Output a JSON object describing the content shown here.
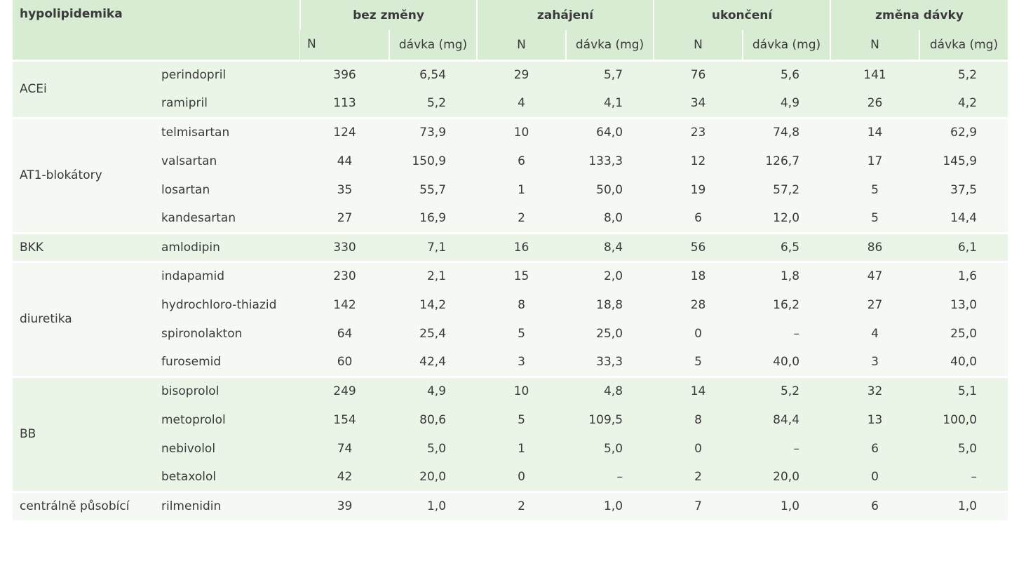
{
  "table": {
    "title": "hypolipidemika",
    "groups": [
      "bez změny",
      "zahájení",
      "ukončení",
      "změna dávky"
    ],
    "subheaders": [
      "N",
      "dávka (mg)",
      "N",
      "dávka (mg)",
      "N",
      "dávka (mg)",
      "N",
      "dávka (mg)"
    ],
    "sections": [
      {
        "name": "ACEi",
        "rows": [
          [
            "perindopril",
            396,
            "6,54",
            29,
            "5,7",
            76,
            "5,6",
            141,
            "5,2"
          ],
          [
            "ramipril",
            113,
            "5,2",
            4,
            "4,1",
            34,
            "4,9",
            26,
            "4,2"
          ]
        ]
      },
      {
        "name": "AT1-blokátory",
        "rows": [
          [
            "telmisartan",
            124,
            "73,9",
            10,
            "64,0",
            23,
            "74,8",
            14,
            "62,9"
          ],
          [
            "valsartan",
            44,
            "150,9",
            6,
            "133,3",
            12,
            "126,7",
            17,
            "145,9"
          ],
          [
            "losartan",
            35,
            "55,7",
            1,
            "50,0",
            19,
            "57,2",
            5,
            "37,5"
          ],
          [
            "kandesartan",
            27,
            "16,9",
            2,
            "8,0",
            6,
            "12,0",
            5,
            "14,4"
          ]
        ]
      },
      {
        "name": "BKK",
        "rows": [
          [
            "amlodipin",
            330,
            "7,1",
            16,
            "8,4",
            56,
            "6,5",
            86,
            "6,1"
          ]
        ]
      },
      {
        "name": "diuretika",
        "rows": [
          [
            "indapamid",
            230,
            "2,1",
            15,
            "2,0",
            18,
            "1,8",
            47,
            "1,6"
          ],
          [
            "hydrochloro-thiazid",
            142,
            "14,2",
            8,
            "18,8",
            28,
            "16,2",
            27,
            "13,0"
          ],
          [
            "spironolakton",
            64,
            "25,4",
            5,
            "25,0",
            0,
            "–",
            4,
            "25,0"
          ],
          [
            "furosemid",
            60,
            "42,4",
            3,
            "33,3",
            5,
            "40,0",
            3,
            "40,0"
          ]
        ]
      },
      {
        "name": "BB",
        "rows": [
          [
            "bisoprolol",
            249,
            "4,9",
            10,
            "4,8",
            14,
            "5,2",
            32,
            "5,1"
          ],
          [
            "metoprolol",
            154,
            "80,6",
            5,
            "109,5",
            8,
            "84,4",
            13,
            "100,0"
          ],
          [
            "nebivolol",
            74,
            "5,0",
            1,
            "5,0",
            0,
            "–",
            6,
            "5,0"
          ],
          [
            "betaxolol",
            42,
            "20,0",
            0,
            "–",
            2,
            "20,0",
            0,
            "–"
          ]
        ]
      },
      {
        "name": "centrálně působící",
        "rows": [
          [
            "rilmenidin",
            39,
            "1,0",
            2,
            "1,0",
            7,
            "1,0",
            6,
            "1,0"
          ]
        ]
      }
    ]
  }
}
